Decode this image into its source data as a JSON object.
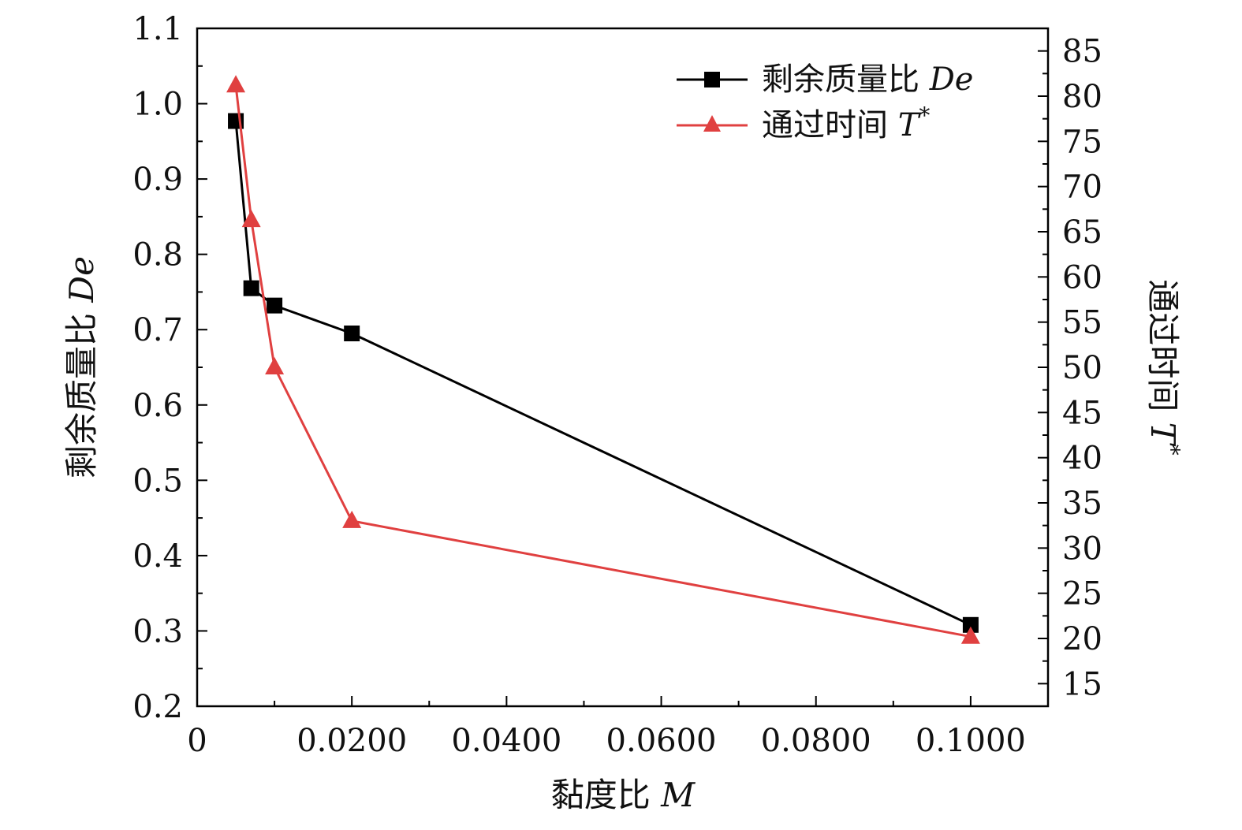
{
  "chart_data": {
    "type": "line",
    "xlabel": "黏度比",
    "xlabel_var": "M",
    "x_ticks": [
      {
        "value": 0,
        "label": "0"
      },
      {
        "value": 0.02,
        "label": "0.0200"
      },
      {
        "value": 0.04,
        "label": "0.0400"
      },
      {
        "value": 0.06,
        "label": "0.0600"
      },
      {
        "value": 0.08,
        "label": "0.0800"
      },
      {
        "value": 0.1,
        "label": "0.1000"
      }
    ],
    "xlim": [
      0,
      0.11
    ],
    "y_left": {
      "label": "剩余质量比",
      "label_var": "De",
      "lim": [
        0.2,
        1.1
      ],
      "ticks": [
        {
          "value": 0.2,
          "label": "0.2"
        },
        {
          "value": 0.3,
          "label": "0.3"
        },
        {
          "value": 0.4,
          "label": "0.4"
        },
        {
          "value": 0.5,
          "label": "0.5"
        },
        {
          "value": 0.6,
          "label": "0.6"
        },
        {
          "value": 0.7,
          "label": "0.7"
        },
        {
          "value": 0.8,
          "label": "0.8"
        },
        {
          "value": 0.9,
          "label": "0.9"
        },
        {
          "value": 1.0,
          "label": "1.0"
        },
        {
          "value": 1.1,
          "label": "1.1"
        }
      ]
    },
    "y_right": {
      "label": "通过时间",
      "label_var": "T",
      "label_sup": "*",
      "lim": [
        12.5,
        87.5
      ],
      "ticks": [
        {
          "value": 15,
          "label": "15"
        },
        {
          "value": 20,
          "label": "20"
        },
        {
          "value": 25,
          "label": "25"
        },
        {
          "value": 30,
          "label": "30"
        },
        {
          "value": 35,
          "label": "35"
        },
        {
          "value": 40,
          "label": "40"
        },
        {
          "value": 45,
          "label": "45"
        },
        {
          "value": 50,
          "label": "50"
        },
        {
          "value": 55,
          "label": "55"
        },
        {
          "value": 60,
          "label": "60"
        },
        {
          "value": 65,
          "label": "65"
        },
        {
          "value": 70,
          "label": "70"
        },
        {
          "value": 75,
          "label": "75"
        },
        {
          "value": 80,
          "label": "80"
        },
        {
          "value": 85,
          "label": "85"
        }
      ]
    },
    "series": [
      {
        "name": "剩余质量比",
        "name_var": "De",
        "axis": "left",
        "color": "#000000",
        "marker": "square",
        "x": [
          0.005,
          0.007,
          0.01,
          0.02,
          0.1
        ],
        "y": [
          0.977,
          0.755,
          0.732,
          0.695,
          0.308
        ]
      },
      {
        "name": "通过时间",
        "name_var": "T",
        "name_sup": "*",
        "axis": "right",
        "color": "#e04040",
        "marker": "triangle",
        "x": [
          0.005,
          0.007,
          0.01,
          0.02,
          0.1
        ],
        "y": [
          81.2,
          66.3,
          50.0,
          33.0,
          20.2
        ]
      }
    ],
    "legend_position": "top-right",
    "grid": false
  }
}
